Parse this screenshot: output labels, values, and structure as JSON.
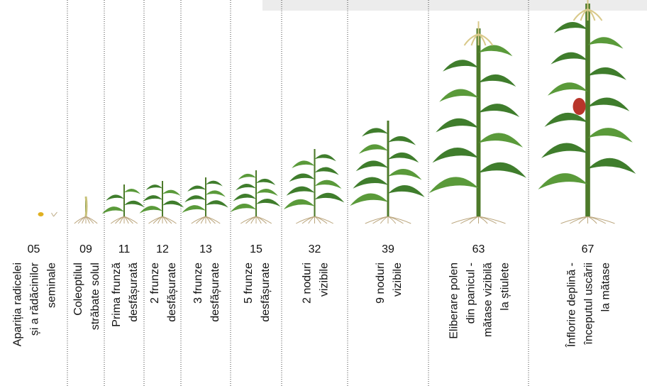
{
  "stages": [
    {
      "code": "05",
      "label": [
        "Apariția radicelei",
        "și a rădăcinilor",
        "seminale"
      ]
    },
    {
      "code": "09",
      "label": [
        "Coleoptilul",
        "străbate solul"
      ]
    },
    {
      "code": "11",
      "label": [
        "Prima frunză",
        "desfășurată"
      ]
    },
    {
      "code": "12",
      "label": [
        "2 frunze",
        "desfășurate"
      ]
    },
    {
      "code": "13",
      "label": [
        "3 frunze",
        "desfășurate"
      ]
    },
    {
      "code": "15",
      "label": [
        "5 frunze",
        "desfășurate"
      ]
    },
    {
      "code": "32",
      "label": [
        "2 noduri",
        "vizibile"
      ]
    },
    {
      "code": "39",
      "label": [
        "9 noduri",
        "vizibile"
      ]
    },
    {
      "code": "63",
      "label": [
        "Eliberare polen",
        "din panicul -",
        "mătase vizibilă",
        "la știulete"
      ]
    },
    {
      "code": "67",
      "label": [
        "Înflorire deplină -",
        "începutul uscării",
        "la mătase"
      ]
    }
  ]
}
